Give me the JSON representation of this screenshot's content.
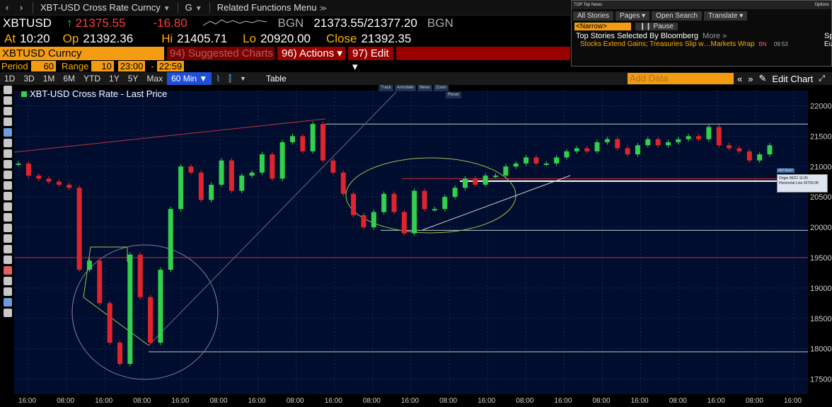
{
  "nav": {
    "title": "XBT-USD Cross Rate Curncy",
    "mode": "G",
    "menu": "Related Functions Menu"
  },
  "quote": {
    "ticker": "XBTUSD",
    "last": "21375.55",
    "change": "-16.80",
    "source": "BGN",
    "bid_ask": "21373.55/21377.20",
    "source2": "BGN",
    "at_label": "At",
    "at_value": "10:20",
    "op_label": "Op",
    "op_value": "21392.36",
    "hi_label": "Hi",
    "hi_value": "21405.71",
    "lo_label": "Lo",
    "lo_value": "20920.00",
    "close_label": "Close",
    "close_value": "21392.35"
  },
  "security": {
    "name": "XBTUSD Curncy",
    "suggested": "94) Suggested Charts",
    "actions": "96) Actions ▾",
    "edit": "97) Edit ▾"
  },
  "period": {
    "period_label": "Period",
    "period_value": "60",
    "range_label": "Range",
    "range_value": "10",
    "range_from": "23:00",
    "dash": "-",
    "range_to": "22:59"
  },
  "toolbar": {
    "buttons": [
      "1D",
      "3D",
      "1M",
      "6M",
      "YTD",
      "1Y",
      "5Y",
      "Max"
    ],
    "active": "60 Min ▼",
    "table": "Table",
    "add_data": "Add Data",
    "edit_chart": "Edit Chart",
    "nav_back": "«",
    "nav_fwd": "»"
  },
  "news": {
    "header_left": "TOP Top News",
    "header_right": "Options",
    "tabs": [
      "All Stories",
      "Pages ▾",
      "Open Search",
      "Translate ▾"
    ],
    "narrow": "<Narrow>",
    "pause": "Pause",
    "title": "Top Stories Selected By Bloomberg",
    "more": "More »",
    "story": "Stocks Extend Gains; Treasuries Slip w…Markets Wrap",
    "story_src": "BN",
    "story_time": "09:53",
    "side": "Sp-",
    "side2": "Eu-"
  },
  "chart": {
    "title": "XBT-USD Cross Rate - Last Price",
    "mini_tools": [
      "Track",
      "Annotate",
      "News",
      "Zoom"
    ],
    "reset": "Reset",
    "tooltip_line1": "Origin 06/21 11:00",
    "tooltip_line2": "Horizontal Line 20759.08",
    "price_tag": "20776.67",
    "colors": {
      "up": "#32d04c",
      "down": "#e0242c",
      "bg": "#000d2e",
      "grid": "#1a2a50"
    }
  },
  "chart_data": {
    "type": "line",
    "title": "XBT-USD Cross Rate - Last Price",
    "y_tick_labels": [
      "22000",
      "21500",
      "21000",
      "20500",
      "20000",
      "19500",
      "19000",
      "18500",
      "18000",
      "17500"
    ],
    "x_tick_labels": [
      "16:00",
      "08:00",
      "16:00",
      "08:00",
      "16:00",
      "08:00",
      "16:00",
      "08:00",
      "16:00",
      "08:00",
      "16:00",
      "08:00",
      "16:00",
      "08:00",
      "16:00",
      "08:00",
      "16:00",
      "08:00",
      "16:00",
      "08:00",
      "16:00"
    ],
    "ylim": [
      17250,
      22250
    ],
    "series": [
      {
        "values": [
          21050,
          20850,
          20800,
          20750,
          20700,
          20650,
          19300,
          19450,
          18750,
          18100,
          17750,
          19550,
          18850,
          18100,
          19300,
          20300,
          21000,
          20900,
          20450,
          20700,
          21100,
          20600,
          20850,
          20900,
          21200,
          20800,
          21400,
          21500,
          21250,
          21700,
          21100,
          20900,
          20550,
          20200,
          20000,
          20250,
          20550,
          20250,
          19900,
          20600,
          20300,
          20300,
          20500,
          20650,
          20800,
          20700,
          20850,
          20850,
          21000,
          21050,
          21150,
          21050,
          21050,
          21150,
          21250,
          21300,
          21250,
          21400,
          21450,
          21300,
          21200,
          21350,
          21450,
          21350,
          21400,
          21450,
          21500,
          21450,
          21650,
          21350,
          21300,
          21250,
          21100,
          21200,
          21350
        ]
      }
    ],
    "levels": [
      21700,
      20800,
      20759.08,
      19950,
      19500,
      17950
    ],
    "grid": true
  }
}
